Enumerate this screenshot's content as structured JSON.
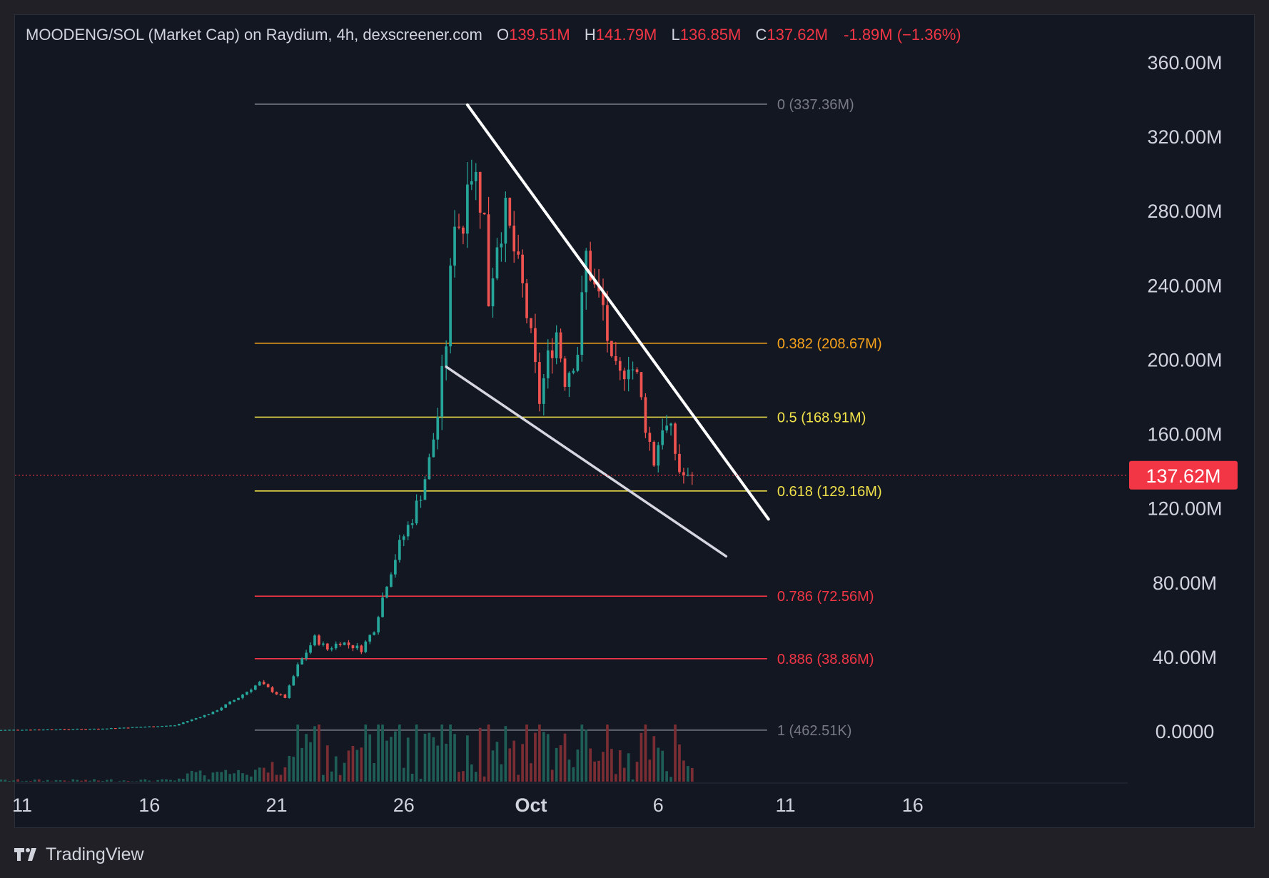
{
  "header": {
    "symbol_title": "MOODENG/SOL (Market Cap) on Raydium, 4h, dexscreener.com",
    "open_label": "O",
    "open": "139.51M",
    "high_label": "H",
    "high": "141.79M",
    "low_label": "L",
    "low": "136.85M",
    "close_label": "C",
    "close": "137.62M",
    "change": "-1.89M (−1.36%)"
  },
  "footer": {
    "brand": "TradingView"
  },
  "colors": {
    "up": "#26a69a",
    "down": "#ef5350",
    "background": "#131722",
    "fib_gray": "#787b86",
    "fib_orange": "#f7a21b",
    "fib_yellow": "#f0e04a",
    "fib_red": "#f23645",
    "trendline": "#ffffff",
    "price_tag": "#f23645"
  },
  "chart_data": {
    "type": "candlestick",
    "title": "MOODENG/SOL (Market Cap) on Raydium, 4h, dexscreener.com",
    "y_unit": "market cap (USD)",
    "ylim": [
      -10,
      375
    ],
    "y_ticks": [
      {
        "value": 360,
        "label": "360.00M"
      },
      {
        "value": 320,
        "label": "320.00M"
      },
      {
        "value": 280,
        "label": "280.00M"
      },
      {
        "value": 240,
        "label": "240.00M"
      },
      {
        "value": 200,
        "label": "200.00M"
      },
      {
        "value": 160,
        "label": "160.00M"
      },
      {
        "value": 120,
        "label": "120.00M"
      },
      {
        "value": 80,
        "label": "80.00M"
      },
      {
        "value": 40,
        "label": "40.00M"
      },
      {
        "value": 0,
        "label": "0.0000"
      }
    ],
    "xlim": [
      "2024-09-10",
      "2024-10-22"
    ],
    "x_ticks": [
      {
        "date": "2024-09-11",
        "label": "11"
      },
      {
        "date": "2024-09-16",
        "label": "16"
      },
      {
        "date": "2024-09-21",
        "label": "21"
      },
      {
        "date": "2024-09-26",
        "label": "26"
      },
      {
        "date": "2024-10-01",
        "label": "Oct"
      },
      {
        "date": "2024-10-06",
        "label": "6"
      },
      {
        "date": "2024-10-11",
        "label": "11"
      },
      {
        "date": "2024-10-16",
        "label": "16"
      }
    ],
    "last_price": {
      "value": 137.62,
      "label": "137.62M"
    },
    "fib_range": {
      "from": "2024-09-20",
      "to": "2024-10-10"
    },
    "fib_levels": [
      {
        "ratio": 0,
        "value": 337.36,
        "label": "0 (337.36M)",
        "color": "#787b86"
      },
      {
        "ratio": 0.382,
        "value": 208.67,
        "label": "0.382 (208.67M)",
        "color": "#f7a21b"
      },
      {
        "ratio": 0.5,
        "value": 168.91,
        "label": "0.5 (168.91M)",
        "color": "#f0e04a"
      },
      {
        "ratio": 0.618,
        "value": 129.16,
        "label": "0.618 (129.16M)",
        "color": "#f0e04a"
      },
      {
        "ratio": 0.786,
        "value": 72.56,
        "label": "0.786 (72.56M)",
        "color": "#f23645"
      },
      {
        "ratio": 0.886,
        "value": 38.86,
        "label": "0.886 (38.86M)",
        "color": "#f23645"
      },
      {
        "ratio": 1,
        "value": 0.46,
        "label": "1 (462.51K)",
        "color": "#787b86"
      }
    ],
    "trendlines": [
      {
        "name": "upper",
        "from": {
          "date": "2024-09-28 12:00",
          "value": 337
        },
        "to": {
          "date": "2024-10-10 08:00",
          "value": 114
        }
      },
      {
        "name": "lower",
        "from": {
          "date": "2024-09-27 16:00",
          "value": 196
        },
        "to": {
          "date": "2024-10-08 16:00",
          "value": 94
        }
      }
    ],
    "candles_interval_hours": 4,
    "series": [
      {
        "name": "price",
        "anchors": [
          {
            "date": "2024-09-10 00:00",
            "value": 0.5
          },
          {
            "date": "2024-09-14 00:00",
            "value": 1.2
          },
          {
            "date": "2024-09-17 00:00",
            "value": 3
          },
          {
            "date": "2024-09-18 12:00",
            "value": 10
          },
          {
            "date": "2024-09-19 12:00",
            "value": 18
          },
          {
            "date": "2024-09-20 08:00",
            "value": 26
          },
          {
            "date": "2024-09-21 00:00",
            "value": 20
          },
          {
            "date": "2024-09-21 08:00",
            "value": 18
          },
          {
            "date": "2024-09-21 20:00",
            "value": 35
          },
          {
            "date": "2024-09-22 12:00",
            "value": 50
          },
          {
            "date": "2024-09-23 00:00",
            "value": 44
          },
          {
            "date": "2024-09-23 12:00",
            "value": 48
          },
          {
            "date": "2024-09-24 08:00",
            "value": 44
          },
          {
            "date": "2024-09-24 20:00",
            "value": 55
          },
          {
            "date": "2024-09-25 08:00",
            "value": 80
          },
          {
            "date": "2024-09-25 20:00",
            "value": 100
          },
          {
            "date": "2024-09-26 08:00",
            "value": 115
          },
          {
            "date": "2024-09-26 16:00",
            "value": 128
          },
          {
            "date": "2024-09-27 00:00",
            "value": 145
          },
          {
            "date": "2024-09-27 08:00",
            "value": 170
          },
          {
            "date": "2024-09-27 16:00",
            "value": 210
          },
          {
            "date": "2024-09-28 00:00",
            "value": 278
          },
          {
            "date": "2024-09-28 08:00",
            "value": 270
          },
          {
            "date": "2024-09-28 12:00",
            "value": 305
          },
          {
            "date": "2024-09-28 20:00",
            "value": 298
          },
          {
            "date": "2024-09-29 04:00",
            "value": 275
          },
          {
            "date": "2024-09-29 08:00",
            "value": 232
          },
          {
            "date": "2024-09-29 16:00",
            "value": 265
          },
          {
            "date": "2024-09-30 00:00",
            "value": 278
          },
          {
            "date": "2024-09-30 08:00",
            "value": 258
          },
          {
            "date": "2024-09-30 16:00",
            "value": 238
          },
          {
            "date": "2024-10-01 00:00",
            "value": 210
          },
          {
            "date": "2024-10-01 08:00",
            "value": 178
          },
          {
            "date": "2024-10-01 16:00",
            "value": 200
          },
          {
            "date": "2024-10-02 00:00",
            "value": 215
          },
          {
            "date": "2024-10-02 08:00",
            "value": 190
          },
          {
            "date": "2024-10-02 20:00",
            "value": 205
          },
          {
            "date": "2024-10-03 04:00",
            "value": 256
          },
          {
            "date": "2024-10-03 12:00",
            "value": 238
          },
          {
            "date": "2024-10-03 20:00",
            "value": 228
          },
          {
            "date": "2024-10-04 04:00",
            "value": 195
          },
          {
            "date": "2024-10-04 12:00",
            "value": 190
          },
          {
            "date": "2024-10-04 20:00",
            "value": 200
          },
          {
            "date": "2024-10-05 04:00",
            "value": 190
          },
          {
            "date": "2024-10-05 12:00",
            "value": 165
          },
          {
            "date": "2024-10-05 20:00",
            "value": 145
          },
          {
            "date": "2024-10-06 04:00",
            "value": 165
          },
          {
            "date": "2024-10-06 12:00",
            "value": 160
          },
          {
            "date": "2024-10-06 20:00",
            "value": 140
          },
          {
            "date": "2024-10-07 04:00",
            "value": 135
          },
          {
            "date": "2024-10-07 08:00",
            "value": 137.62
          }
        ]
      }
    ]
  }
}
